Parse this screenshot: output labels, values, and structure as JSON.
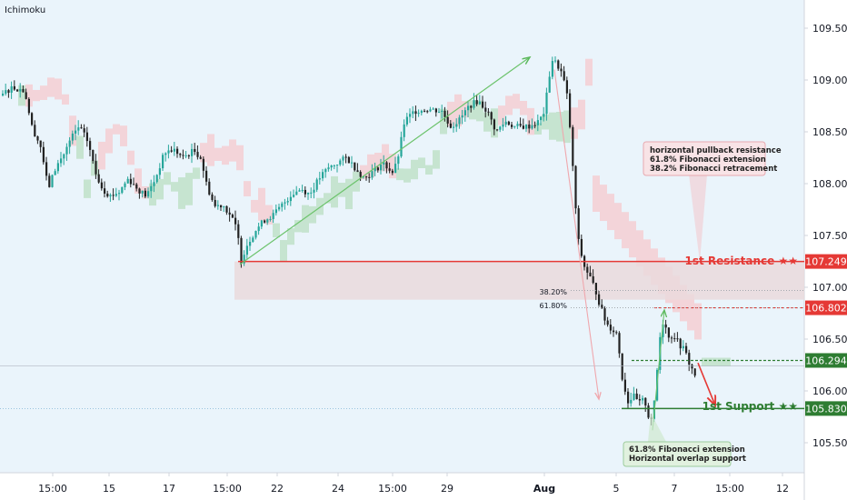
{
  "indicator_label": "Ichimoku",
  "colors": {
    "background": "#eaf4fb",
    "up": "#26a69a",
    "down": "#222222",
    "resistance": "#e53935",
    "support": "#2e7d32",
    "cloud_bull": "#b9dfc1",
    "cloud_bear": "#f6c9cd",
    "zone": "#ead9dc"
  },
  "chart_data": {
    "type": "candlestick",
    "y_range": [
      105.25,
      109.75
    ],
    "y_ticks": [
      "109.500",
      "109.000",
      "108.500",
      "108.000",
      "107.500",
      "107.000",
      "106.500",
      "106.000",
      "105.500"
    ],
    "x_ticks": [
      "15:00",
      "15",
      "17",
      "15:00",
      "22",
      "24",
      "15:00",
      "29",
      "Aug",
      "5",
      "7",
      "15:00",
      "12"
    ],
    "levels": {
      "resistance": {
        "label": "1st Resistance ★★",
        "price": "107.249",
        "value": 107.249
      },
      "pullback": {
        "price": "106.802",
        "value": 106.802
      },
      "entry": {
        "price": "106.294",
        "value": 106.294
      },
      "support": {
        "label": "1st Support ★★",
        "price": "105.830",
        "value": 105.83
      }
    },
    "fib_labels": {
      "retracement": "38.20%",
      "extension": "61.80%"
    },
    "annotations": {
      "resistance_note": [
        "horizontal pullback resistance",
        "61.8% Fibonacci extension",
        "38.2% Fibonacci retracement"
      ],
      "support_note": [
        "61.8% Fibonacci extension",
        "Horizontal overlap support"
      ]
    }
  }
}
